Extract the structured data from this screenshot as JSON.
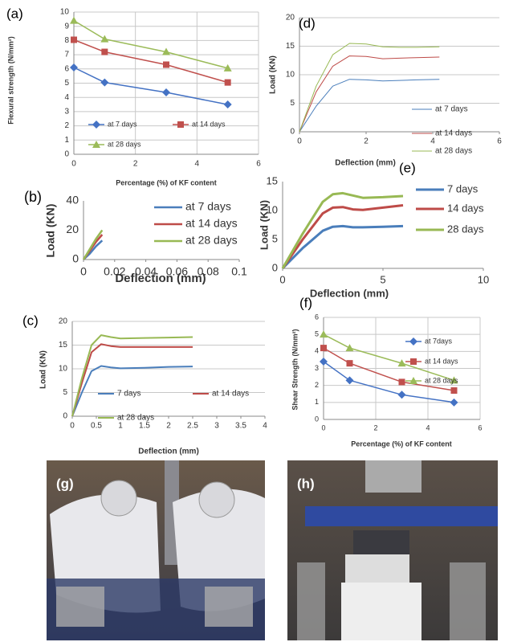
{
  "chart_data": [
    {
      "type": "line",
      "panel": "(a)",
      "ylabel": "Flexural strength (N/mm²)",
      "xlabel": "Percentage (%) of KF content",
      "x": [
        0,
        1,
        3,
        5
      ],
      "xlim": [
        0,
        6
      ],
      "xticks": [
        0,
        2,
        4,
        6
      ],
      "ylim": [
        0,
        10
      ],
      "yticks": [
        0,
        1,
        2,
        3,
        4,
        5,
        6,
        7,
        8,
        9,
        10
      ],
      "grid": "both",
      "legend": "lower left",
      "series": [
        {
          "name": "at 7 days",
          "color": "#4472c4",
          "marker": "diamond",
          "values": [
            6.1,
            5.05,
            4.35,
            3.5
          ]
        },
        {
          "name": "at 14 days",
          "color": "#c0504d",
          "marker": "square",
          "values": [
            8.05,
            7.2,
            6.3,
            5.05
          ]
        },
        {
          "name": "at 28 days",
          "color": "#9bbb59",
          "marker": "triangle",
          "values": [
            9.4,
            8.1,
            7.2,
            6.05
          ]
        }
      ]
    },
    {
      "type": "line",
      "panel": "(b)",
      "ylabel": "Load (KN)",
      "xlabel": "Deflection (mm)",
      "x": [
        0,
        0.004,
        0.008,
        0.012
      ],
      "xlim": [
        0,
        0.1
      ],
      "xticks": [
        0,
        0.02,
        0.04,
        0.06,
        0.08,
        0.1
      ],
      "ylim": [
        0,
        40
      ],
      "yticks": [
        0,
        20,
        40
      ],
      "grid": false,
      "legend": "upper right",
      "series": [
        {
          "name": "at 7 days",
          "color": "#4a7ebb",
          "values": [
            0,
            4,
            9,
            13
          ]
        },
        {
          "name": "at 14 days",
          "color": "#be4b48",
          "values": [
            0,
            6,
            12,
            17
          ]
        },
        {
          "name": "at 28 days",
          "color": "#98b954",
          "values": [
            0,
            7,
            14,
            20
          ]
        }
      ]
    },
    {
      "type": "line",
      "panel": "(c)",
      "ylabel": "Load (KN)",
      "xlabel": "Deflection (mm)",
      "x": [
        0,
        0.2,
        0.4,
        0.6,
        0.8,
        1,
        1.5,
        2,
        2.5
      ],
      "xlim": [
        0,
        4
      ],
      "xticks": [
        0,
        0.5,
        1,
        1.5,
        2,
        2.5,
        3,
        3.5,
        4
      ],
      "ylim": [
        0,
        20
      ],
      "yticks": [
        0,
        5,
        10,
        15,
        20
      ],
      "grid": "y",
      "legend": "lower center",
      "series": [
        {
          "name": "7 days",
          "color": "#4a7ebb",
          "values": [
            0,
            5,
            9.5,
            10.6,
            10.3,
            10.1,
            10.2,
            10.4,
            10.5
          ]
        },
        {
          "name": "at 14 days",
          "color": "#be4b48",
          "values": [
            0,
            7,
            13.5,
            15.2,
            14.8,
            14.6,
            14.6,
            14.6,
            14.6
          ]
        },
        {
          "name": "at 28 days",
          "color": "#98b954",
          "values": [
            0,
            8,
            15,
            17.1,
            16.7,
            16.4,
            16.5,
            16.6,
            16.7
          ]
        }
      ]
    },
    {
      "type": "line",
      "panel": "(d)",
      "ylabel": "Load (KN)",
      "xlabel": "Deflection (mm)",
      "x": [
        0,
        0.5,
        1,
        1.5,
        2,
        2.5,
        3,
        3.5,
        4.2
      ],
      "xlim": [
        0,
        6
      ],
      "xticks": [
        0,
        2,
        4,
        6
      ],
      "ylim": [
        0,
        20
      ],
      "yticks": [
        0,
        5,
        10,
        15,
        20
      ],
      "grid": "y",
      "legend": "lower right",
      "series": [
        {
          "name": "at 7 days",
          "color": "#4a7ebb",
          "values": [
            0,
            4.5,
            8,
            9.2,
            9.1,
            8.9,
            9,
            9.1,
            9.2
          ]
        },
        {
          "name": "at 14 days",
          "color": "#be4b48",
          "values": [
            0,
            7,
            11.5,
            13.3,
            13.2,
            12.8,
            12.9,
            13,
            13.1
          ]
        },
        {
          "name": "at 28 days",
          "color": "#98b954",
          "values": [
            0,
            8,
            13.5,
            15.5,
            15.4,
            14.9,
            14.8,
            14.8,
            14.9
          ]
        }
      ]
    },
    {
      "type": "line",
      "panel": "(e)",
      "ylabel": "Load (KN)",
      "xlabel": "Deflection (mm)",
      "x": [
        0,
        1,
        2,
        2.5,
        3,
        3.5,
        4,
        5,
        6
      ],
      "xlim": [
        0,
        10
      ],
      "xticks": [
        0,
        5,
        10
      ],
      "ylim": [
        0,
        15
      ],
      "yticks": [
        0,
        5,
        10,
        15
      ],
      "grid": false,
      "legend": "upper right",
      "series": [
        {
          "name": "7 days",
          "color": "#4a7ebb",
          "values": [
            0,
            3.5,
            6.5,
            7.2,
            7.3,
            7.1,
            7.1,
            7.2,
            7.3
          ]
        },
        {
          "name": "14 days",
          "color": "#be4b48",
          "values": [
            0,
            5,
            9.5,
            10.5,
            10.6,
            10.2,
            10.1,
            10.5,
            10.9
          ]
        },
        {
          "name": "28 days",
          "color": "#98b954",
          "values": [
            0,
            6,
            11.5,
            12.8,
            13,
            12.6,
            12.2,
            12.3,
            12.5
          ]
        }
      ]
    },
    {
      "type": "line",
      "panel": "(f)",
      "ylabel": "Shear Strength (N/mm²)",
      "xlabel": "Percentage (%) of KF content",
      "x": [
        0,
        1,
        3,
        5
      ],
      "xlim": [
        0,
        6
      ],
      "xticks": [
        0,
        2,
        4,
        6
      ],
      "ylim": [
        0,
        6
      ],
      "yticks": [
        0,
        1,
        2,
        3,
        4,
        5,
        6
      ],
      "grid": "both",
      "legend": "upper right",
      "series": [
        {
          "name": "at 7days",
          "color": "#4472c4",
          "marker": "diamond",
          "values": [
            3.4,
            2.3,
            1.45,
            1.0
          ]
        },
        {
          "name": "at 14 days",
          "color": "#c0504d",
          "marker": "square",
          "values": [
            4.2,
            3.3,
            2.2,
            1.7
          ]
        },
        {
          "name": "at 28 days",
          "color": "#9bbb59",
          "marker": "triangle",
          "values": [
            5.0,
            4.2,
            3.3,
            2.3
          ]
        }
      ]
    }
  ],
  "photos": [
    {
      "label": "(g)"
    },
    {
      "label": "(h)"
    }
  ]
}
